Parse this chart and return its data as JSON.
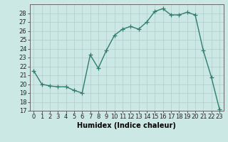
{
  "x": [
    0,
    1,
    2,
    3,
    4,
    5,
    6,
    7,
    8,
    9,
    10,
    11,
    12,
    13,
    14,
    15,
    16,
    17,
    18,
    19,
    20,
    21,
    22,
    23
  ],
  "y": [
    21.5,
    20.0,
    19.8,
    19.7,
    19.7,
    19.3,
    19.0,
    23.3,
    21.8,
    23.8,
    25.5,
    26.2,
    26.5,
    26.2,
    27.0,
    28.2,
    28.5,
    27.8,
    27.8,
    28.1,
    27.8,
    23.8,
    20.8,
    17.2
  ],
  "line_color": "#2e7d6e",
  "marker": "+",
  "marker_size": 4,
  "linewidth": 1.0,
  "bg_color": "#cce8e4",
  "grid_color": "#b0cdc9",
  "xlabel": "Humidex (Indice chaleur)",
  "xlabel_fontsize": 7,
  "tick_fontsize": 6,
  "ylim": [
    17,
    29
  ],
  "xlim": [
    -0.5,
    23.5
  ],
  "yticks": [
    17,
    18,
    19,
    20,
    21,
    22,
    23,
    24,
    25,
    26,
    27,
    28
  ],
  "xticks": [
    0,
    1,
    2,
    3,
    4,
    5,
    6,
    7,
    8,
    9,
    10,
    11,
    12,
    13,
    14,
    15,
    16,
    17,
    18,
    19,
    20,
    21,
    22,
    23
  ]
}
